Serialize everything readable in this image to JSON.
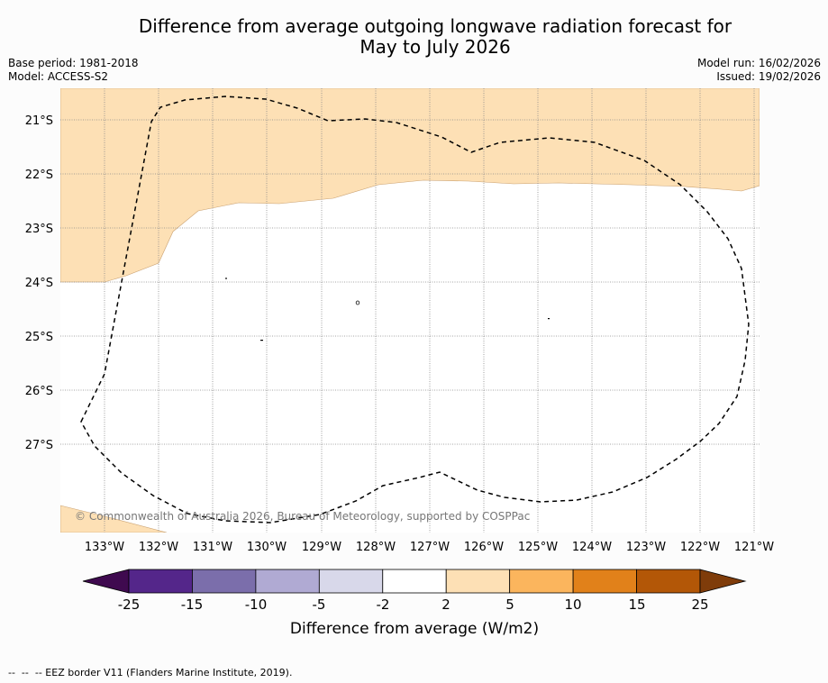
{
  "title": "Difference from average outgoing longwave radiation forecast for\nMay to July 2026",
  "base_period": "Base period: 1981-2018",
  "model": "Model: ACCESS-S2",
  "model_run": "Model run: 16/02/2026",
  "issued": "Issued: 19/02/2026",
  "copyright": "© Commonwealth of Australia 2026, Bureau of Meteorology, supported by COSPPac",
  "lat_labels": [
    "21°S",
    "22°S",
    "23°S",
    "24°S",
    "25°S",
    "26°S",
    "27°S"
  ],
  "lon_labels": [
    "133°W",
    "132°W",
    "131°W",
    "130°W",
    "129°W",
    "128°W",
    "127°W",
    "126°W",
    "125°W",
    "124°W",
    "123°W",
    "122°W",
    "121°W"
  ],
  "colorbar": {
    "title": "Difference from average (W/m2)",
    "tick_labels": [
      "-25",
      "-15",
      "-10",
      "-5",
      "-2",
      "2",
      "5",
      "10",
      "15",
      "25"
    ],
    "colors": [
      "#3f0a4f",
      "#54268a",
      "#7b6eab",
      "#b0aad3",
      "#d8d8ea",
      "#ffffff",
      "#fde0b5",
      "#fbb55d",
      "#e1811a",
      "#b35707",
      "#7f3c0a"
    ]
  },
  "footer": "--  --  -- EEZ border V11 (Flanders Marine Institute, 2019).",
  "colors": {
    "anomaly_fill": "#fde0b5",
    "eez_line": "#000000",
    "grid": "#888888"
  }
}
